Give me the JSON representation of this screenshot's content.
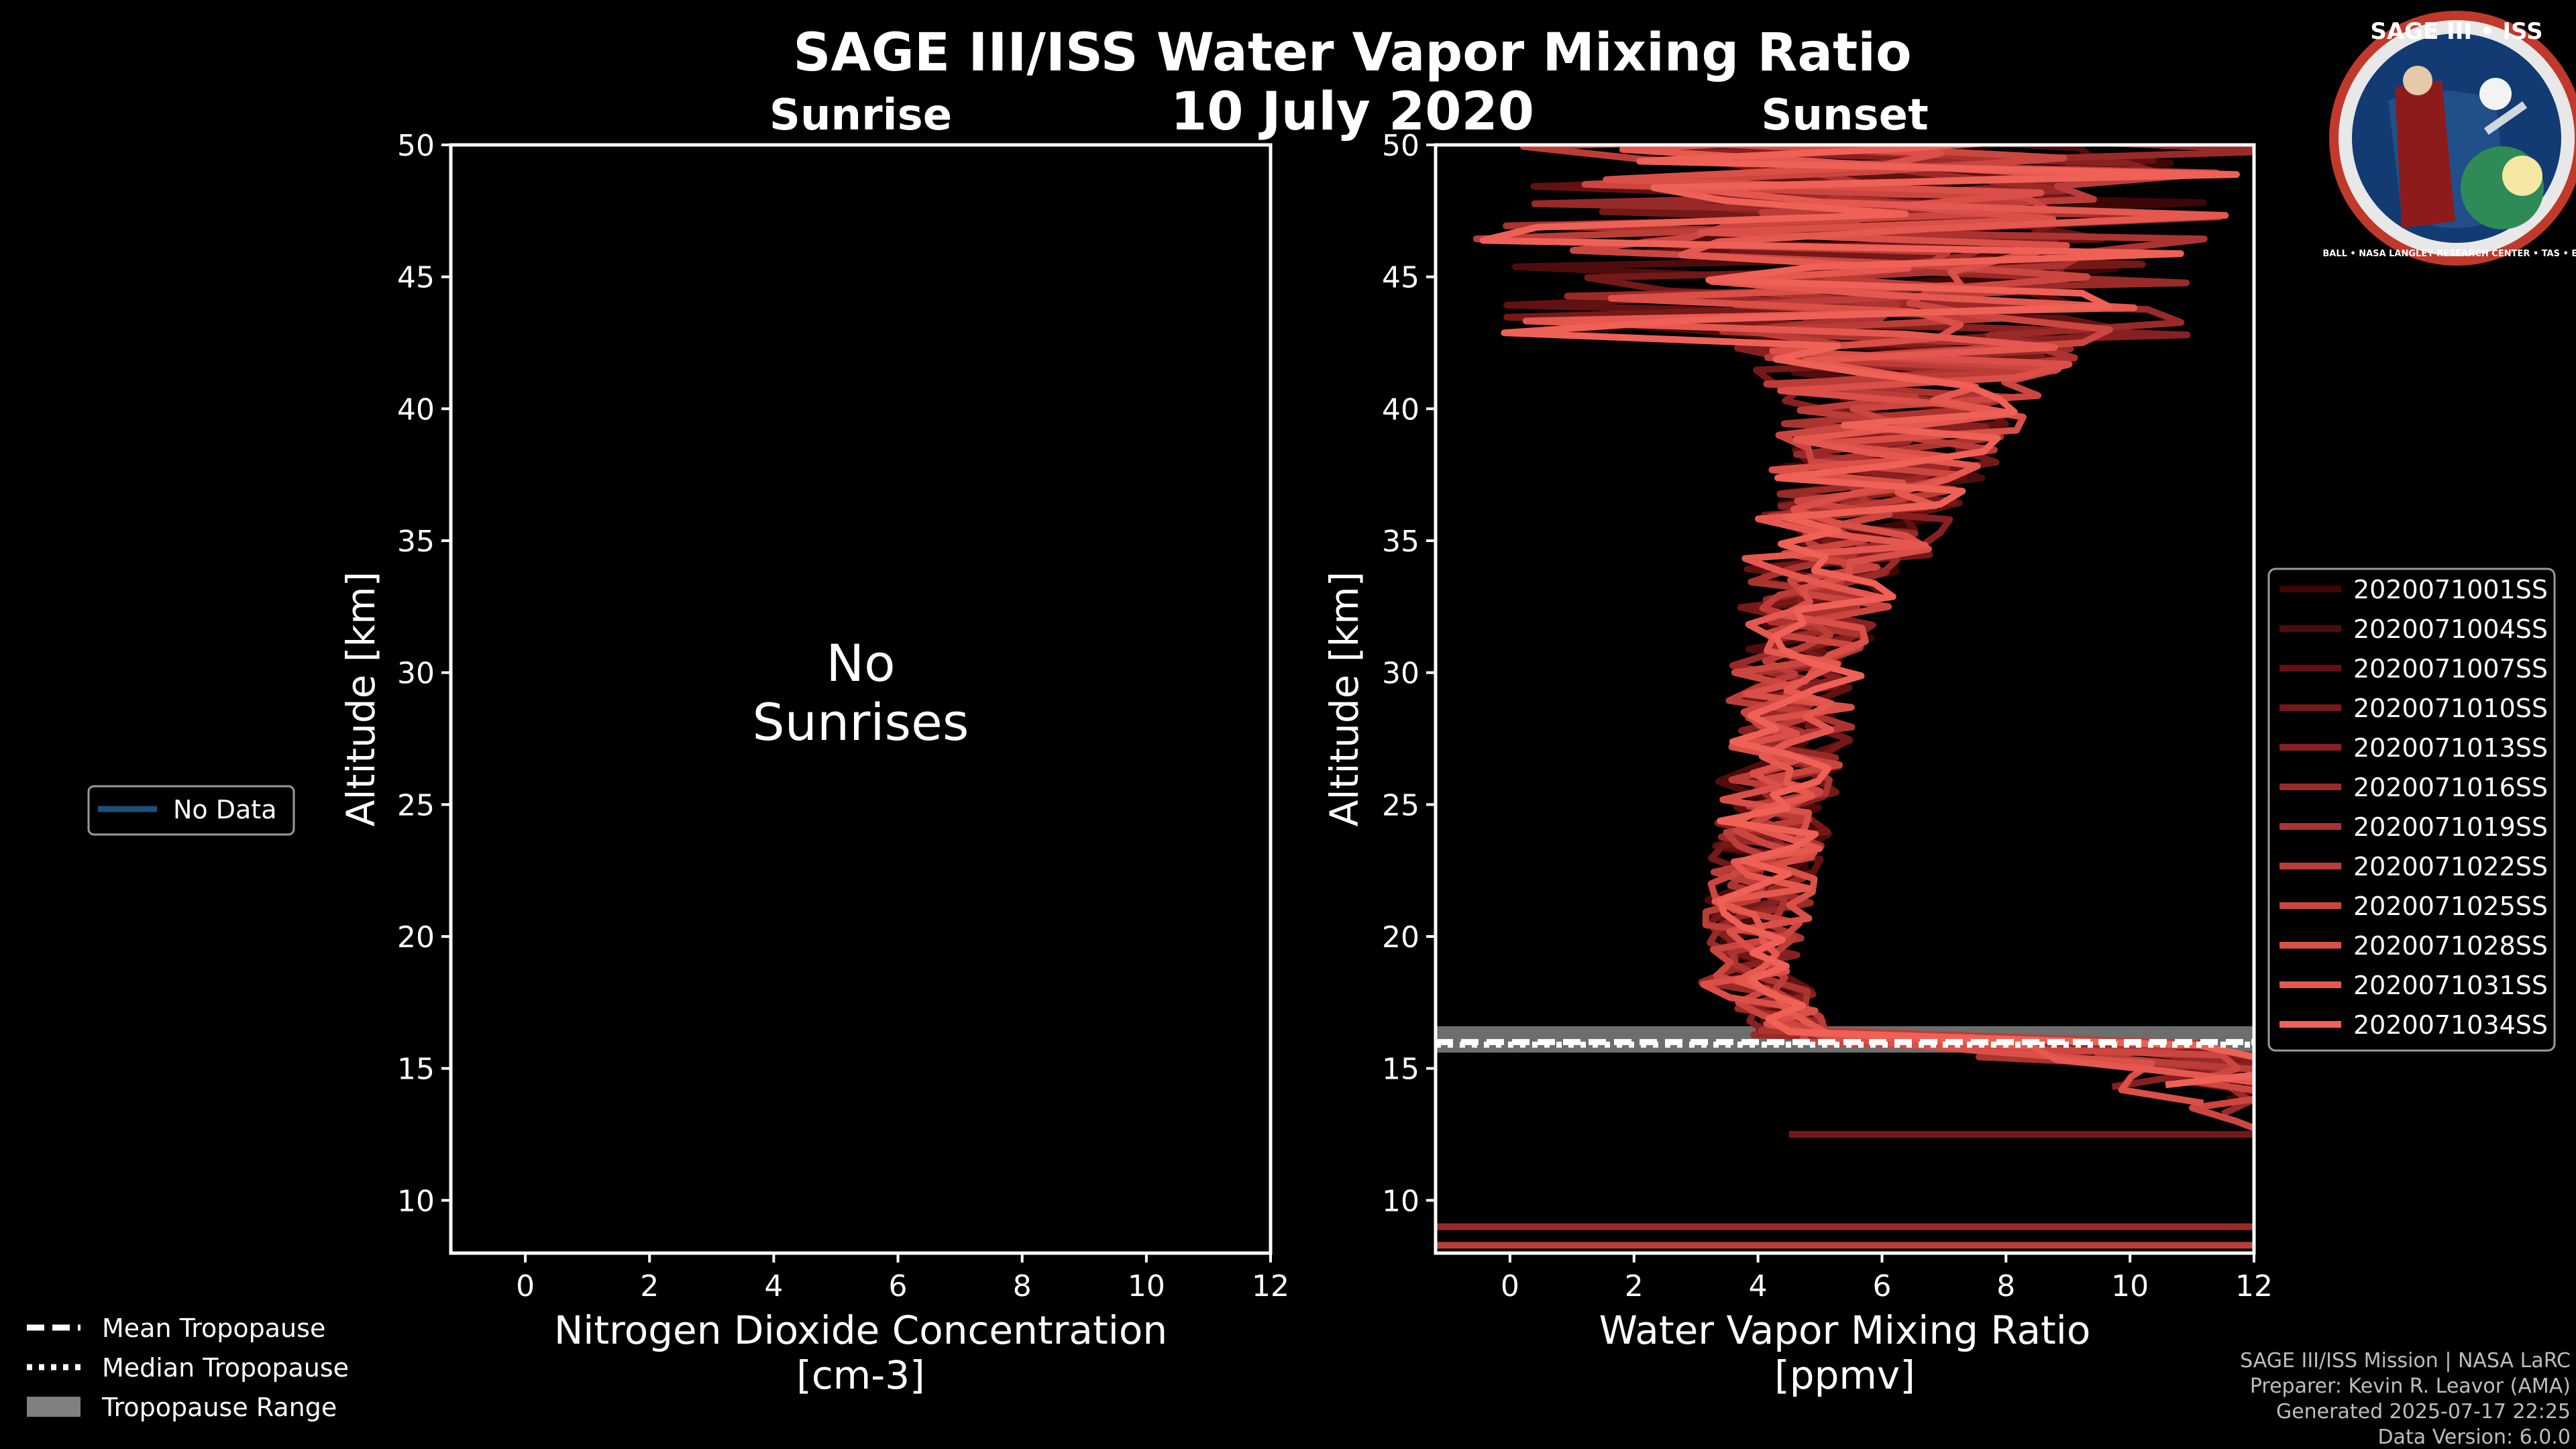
{
  "header": {
    "title": "SAGE III/ISS Water Vapor Mixing Ratio",
    "date": "10 July 2020",
    "left_panel_title": "Sunrise",
    "right_panel_title": "Sunset"
  },
  "logo": {
    "text": "SAGE III • ISS",
    "ring_text": "BALL • NASA LANGLEY RESEARCH CENTER • TAS • ESA"
  },
  "left_panel": {
    "message_line1": "No",
    "message_line2": "Sunrises",
    "legend_label": "No Data",
    "legend_color": "#1f4e79"
  },
  "tropopause_legend": {
    "mean": "Mean Tropopause",
    "median": "Median Tropopause",
    "range": "Tropopause Range"
  },
  "credits": {
    "line1": "SAGE III/ISS Mission | NASA LaRC",
    "line2": "Preparer: Kevin R. Leavor (AMA)",
    "line3": "Generated 2025-07-17 22:25",
    "line4": "Data Version: 6.0.0"
  },
  "chart_data": [
    {
      "type": "line",
      "title": "Sunrise",
      "xlabel": "Nitrogen Dioxide Concentration",
      "xlabel_units": "[cm-3]",
      "ylabel": "Altitude [km]",
      "xlim": [
        -1.2,
        12
      ],
      "ylim": [
        8,
        50
      ],
      "xticks": [
        0,
        2,
        4,
        6,
        8,
        10,
        12
      ],
      "yticks": [
        10,
        15,
        20,
        25,
        30,
        35,
        40,
        45,
        50
      ],
      "series": []
    },
    {
      "type": "line",
      "title": "Sunset",
      "xlabel": "Water Vapor Mixing Ratio",
      "xlabel_units": "[ppmv]",
      "ylabel": "Altitude [km]",
      "xlim": [
        -1.2,
        12
      ],
      "ylim": [
        8,
        50
      ],
      "xticks": [
        0,
        2,
        4,
        6,
        8,
        10,
        12
      ],
      "yticks": [
        10,
        15,
        20,
        25,
        30,
        35,
        40,
        45,
        50
      ],
      "tropopause": {
        "mean_km": 16.0,
        "median_km": 15.9,
        "range_km": [
          15.6,
          16.6
        ]
      },
      "series": [
        {
          "name": "2020071001SS",
          "color": "#3d0707"
        },
        {
          "name": "2020071004SS",
          "color": "#4f0c0c"
        },
        {
          "name": "2020071007SS",
          "color": "#621111"
        },
        {
          "name": "2020071010SS",
          "color": "#751818"
        },
        {
          "name": "2020071013SS",
          "color": "#872020"
        },
        {
          "name": "2020071016SS",
          "color": "#992a28"
        },
        {
          "name": "2020071019SS",
          "color": "#ab3430"
        },
        {
          "name": "2020071022SS",
          "color": "#bc3d38"
        },
        {
          "name": "2020071025SS",
          "color": "#cc4640"
        },
        {
          "name": "2020071028SS",
          "color": "#da4f47"
        },
        {
          "name": "2020071031SS",
          "color": "#e5584f"
        },
        {
          "name": "2020071034SS",
          "color": "#ef6156"
        }
      ]
    }
  ]
}
